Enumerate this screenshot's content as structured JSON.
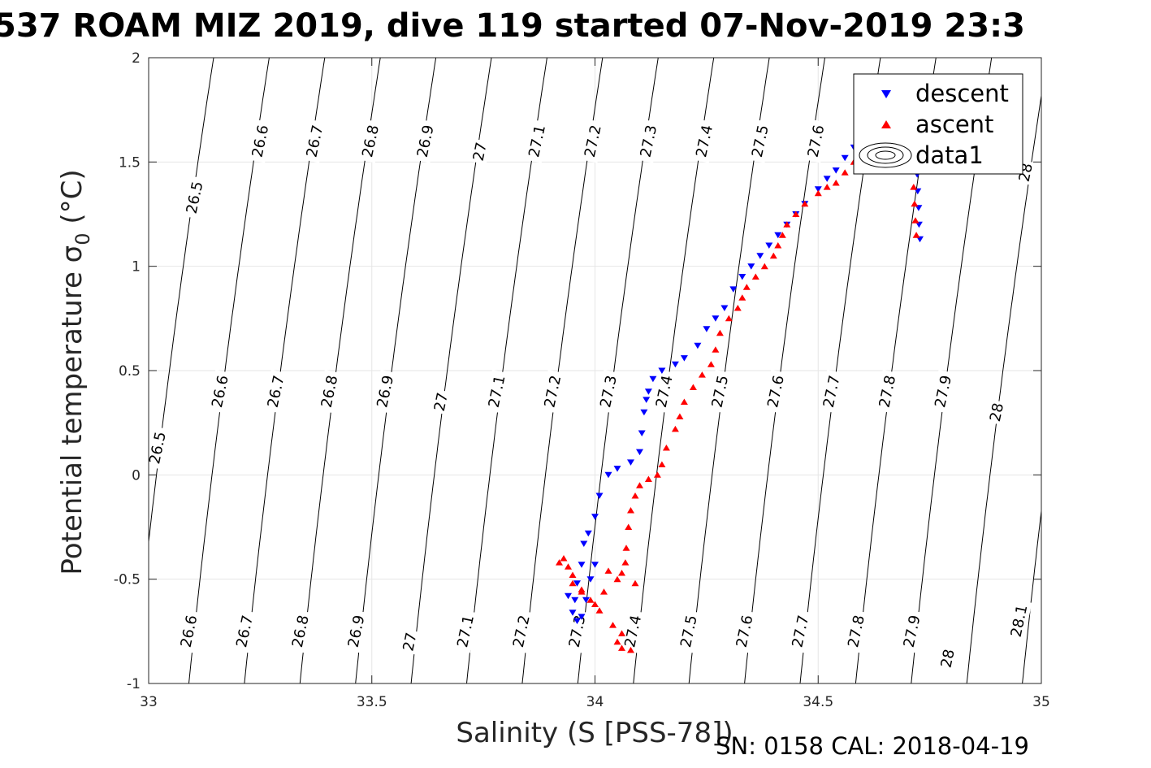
{
  "title": "537 ROAM MIZ 2019, dive 119 started 07-Nov-2019 23:3",
  "footer": "SN: 0158  CAL: 2018-04-19",
  "colors": {
    "descent": "#0000ff",
    "ascent": "#ff0000",
    "contour": "#000000",
    "grid": "#e6e6e6"
  },
  "chart_data": {
    "type": "scatter",
    "xlabel": "Salinity (S [PSS-78])",
    "ylabel": "Potential temperature σ",
    "ylabel_sub": "0",
    "ylabel_unit": " (°C)",
    "xlim": [
      33,
      35
    ],
    "ylim": [
      -1,
      2
    ],
    "grid": true,
    "legend_position": "top-right",
    "xticks": [
      33,
      33.5,
      34,
      34.5,
      35
    ],
    "xtick_labels": [
      "33",
      "33.5",
      "34",
      "34.5",
      "35"
    ],
    "yticks": [
      -1,
      -0.5,
      0,
      0.5,
      1,
      1.5,
      2
    ],
    "ytick_labels": [
      "-1",
      "-0.5",
      "0",
      "0.5",
      "1",
      "1.5",
      "2"
    ],
    "legend": [
      "descent",
      "ascent",
      "data1"
    ],
    "contour_levels": [
      "26.5",
      "26.6",
      "26.7",
      "26.8",
      "26.9",
      "27",
      "27.1",
      "27.2",
      "27.3",
      "27.4",
      "27.5",
      "27.6",
      "27.7",
      "27.8",
      "27.9",
      "28",
      "28.1"
    ],
    "contour_labels": [
      {
        "text": "26.5",
        "s": 33.103,
        "t": 1.33
      },
      {
        "text": "26.6",
        "s": 33.25,
        "t": 1.6
      },
      {
        "text": "26.7",
        "s": 33.372,
        "t": 1.6
      },
      {
        "text": "26.8",
        "s": 33.497,
        "t": 1.6
      },
      {
        "text": "26.9",
        "s": 33.62,
        "t": 1.6
      },
      {
        "text": "27",
        "s": 33.742,
        "t": 1.55
      },
      {
        "text": "27.1",
        "s": 33.87,
        "t": 1.6
      },
      {
        "text": "27.2",
        "s": 33.995,
        "t": 1.6
      },
      {
        "text": "27.3",
        "s": 34.12,
        "t": 1.6
      },
      {
        "text": "27.4",
        "s": 34.245,
        "t": 1.6
      },
      {
        "text": "27.5",
        "s": 34.37,
        "t": 1.6
      },
      {
        "text": "27.6",
        "s": 34.495,
        "t": 1.6
      },
      {
        "text": "28",
        "s": 34.965,
        "t": 1.45
      },
      {
        "text": "26.5",
        "s": 33.02,
        "t": 0.13
      },
      {
        "text": "26.6",
        "s": 33.16,
        "t": 0.4
      },
      {
        "text": "26.7",
        "s": 33.285,
        "t": 0.4
      },
      {
        "text": "26.8",
        "s": 33.405,
        "t": 0.4
      },
      {
        "text": "26.9",
        "s": 33.53,
        "t": 0.4
      },
      {
        "text": "27",
        "s": 33.655,
        "t": 0.35
      },
      {
        "text": "27.1",
        "s": 33.78,
        "t": 0.4
      },
      {
        "text": "27.2",
        "s": 33.905,
        "t": 0.4
      },
      {
        "text": "27.3",
        "s": 34.03,
        "t": 0.4
      },
      {
        "text": "27.4",
        "s": 34.155,
        "t": 0.4
      },
      {
        "text": "27.5",
        "s": 34.28,
        "t": 0.4
      },
      {
        "text": "27.6",
        "s": 34.405,
        "t": 0.4
      },
      {
        "text": "27.7",
        "s": 34.53,
        "t": 0.4
      },
      {
        "text": "27.8",
        "s": 34.655,
        "t": 0.4
      },
      {
        "text": "27.9",
        "s": 34.78,
        "t": 0.4
      },
      {
        "text": "28",
        "s": 34.9,
        "t": 0.3
      },
      {
        "text": "26.6",
        "s": 33.09,
        "t": -0.75
      },
      {
        "text": "26.7",
        "s": 33.215,
        "t": -0.75
      },
      {
        "text": "26.8",
        "s": 33.34,
        "t": -0.75
      },
      {
        "text": "26.9",
        "s": 33.465,
        "t": -0.75
      },
      {
        "text": "27",
        "s": 33.585,
        "t": -0.8
      },
      {
        "text": "27.1",
        "s": 33.71,
        "t": -0.75
      },
      {
        "text": "27.2",
        "s": 33.835,
        "t": -0.75
      },
      {
        "text": "27.3",
        "s": 33.96,
        "t": -0.75
      },
      {
        "text": "27.4",
        "s": 34.085,
        "t": -0.75
      },
      {
        "text": "27.5",
        "s": 34.21,
        "t": -0.75
      },
      {
        "text": "27.6",
        "s": 34.335,
        "t": -0.75
      },
      {
        "text": "27.7",
        "s": 34.46,
        "t": -0.75
      },
      {
        "text": "27.8",
        "s": 34.585,
        "t": -0.75
      },
      {
        "text": "27.9",
        "s": 34.71,
        "t": -0.75
      },
      {
        "text": "28",
        "s": 34.79,
        "t": -0.88
      },
      {
        "text": "28.1",
        "s": 34.95,
        "t": -0.7
      }
    ],
    "series": [
      {
        "name": "descent",
        "marker": "triangle-down",
        "points": [
          [
            34.728,
            1.13
          ],
          [
            34.726,
            1.2
          ],
          [
            34.725,
            1.28
          ],
          [
            34.723,
            1.36
          ],
          [
            34.722,
            1.44
          ],
          [
            34.72,
            1.52
          ],
          [
            34.718,
            1.58
          ],
          [
            34.716,
            1.62
          ],
          [
            34.64,
            1.64
          ],
          [
            34.6,
            1.6
          ],
          [
            34.58,
            1.57
          ],
          [
            34.56,
            1.52
          ],
          [
            34.54,
            1.46
          ],
          [
            34.52,
            1.42
          ],
          [
            34.5,
            1.37
          ],
          [
            34.47,
            1.3
          ],
          [
            34.45,
            1.25
          ],
          [
            34.43,
            1.2
          ],
          [
            34.41,
            1.15
          ],
          [
            34.39,
            1.1
          ],
          [
            34.37,
            1.05
          ],
          [
            34.35,
            1.0
          ],
          [
            34.33,
            0.95
          ],
          [
            34.31,
            0.89
          ],
          [
            34.29,
            0.8
          ],
          [
            34.27,
            0.75
          ],
          [
            34.25,
            0.7
          ],
          [
            34.23,
            0.62
          ],
          [
            34.2,
            0.56
          ],
          [
            34.18,
            0.53
          ],
          [
            34.15,
            0.5
          ],
          [
            34.13,
            0.46
          ],
          [
            34.12,
            0.4
          ],
          [
            34.115,
            0.36
          ],
          [
            34.11,
            0.3
          ],
          [
            34.105,
            0.2
          ],
          [
            34.1,
            0.11
          ],
          [
            34.08,
            0.06
          ],
          [
            34.05,
            0.03
          ],
          [
            34.03,
            0.0
          ],
          [
            34.01,
            -0.1
          ],
          [
            34.0,
            -0.2
          ],
          [
            33.985,
            -0.28
          ],
          [
            33.975,
            -0.33
          ],
          [
            33.97,
            -0.43
          ],
          [
            33.96,
            -0.52
          ],
          [
            33.955,
            -0.6
          ],
          [
            33.95,
            -0.66
          ],
          [
            33.96,
            -0.7
          ],
          [
            33.97,
            -0.68
          ],
          [
            33.98,
            -0.6
          ],
          [
            33.99,
            -0.5
          ],
          [
            34.0,
            -0.43
          ],
          [
            33.94,
            -0.58
          ]
        ]
      },
      {
        "name": "ascent",
        "marker": "triangle-up",
        "points": [
          [
            34.72,
            1.15
          ],
          [
            34.718,
            1.22
          ],
          [
            34.716,
            1.3
          ],
          [
            34.714,
            1.38
          ],
          [
            34.713,
            1.46
          ],
          [
            34.712,
            1.55
          ],
          [
            34.71,
            1.6
          ],
          [
            34.63,
            1.6
          ],
          [
            34.6,
            1.55
          ],
          [
            34.58,
            1.5
          ],
          [
            34.56,
            1.45
          ],
          [
            34.54,
            1.4
          ],
          [
            34.52,
            1.38
          ],
          [
            34.5,
            1.35
          ],
          [
            34.47,
            1.3
          ],
          [
            34.45,
            1.25
          ],
          [
            34.43,
            1.2
          ],
          [
            34.42,
            1.15
          ],
          [
            34.41,
            1.1
          ],
          [
            34.4,
            1.05
          ],
          [
            34.38,
            1.0
          ],
          [
            34.36,
            0.95
          ],
          [
            34.34,
            0.9
          ],
          [
            34.33,
            0.85
          ],
          [
            34.32,
            0.8
          ],
          [
            34.3,
            0.75
          ],
          [
            34.28,
            0.68
          ],
          [
            34.27,
            0.6
          ],
          [
            34.26,
            0.53
          ],
          [
            34.24,
            0.48
          ],
          [
            34.22,
            0.42
          ],
          [
            34.2,
            0.35
          ],
          [
            34.19,
            0.28
          ],
          [
            34.18,
            0.22
          ],
          [
            34.16,
            0.13
          ],
          [
            34.15,
            0.05
          ],
          [
            34.14,
            0.0
          ],
          [
            34.12,
            -0.02
          ],
          [
            34.1,
            -0.05
          ],
          [
            34.09,
            -0.1
          ],
          [
            34.08,
            -0.17
          ],
          [
            34.075,
            -0.25
          ],
          [
            34.07,
            -0.35
          ],
          [
            34.068,
            -0.42
          ],
          [
            34.06,
            -0.47
          ],
          [
            34.05,
            -0.5
          ],
          [
            34.09,
            -0.52
          ],
          [
            34.03,
            -0.46
          ],
          [
            34.02,
            -0.56
          ],
          [
            34.01,
            -0.65
          ],
          [
            34.0,
            -0.62
          ],
          [
            33.99,
            -0.6
          ],
          [
            33.97,
            -0.55
          ],
          [
            33.95,
            -0.52
          ],
          [
            33.94,
            -0.44
          ],
          [
            33.93,
            -0.4
          ],
          [
            33.92,
            -0.42
          ],
          [
            33.95,
            -0.48
          ],
          [
            33.97,
            -0.56
          ],
          [
            34.04,
            -0.72
          ],
          [
            34.05,
            -0.8
          ],
          [
            34.06,
            -0.83
          ],
          [
            34.08,
            -0.84
          ],
          [
            34.06,
            -0.76
          ]
        ]
      }
    ]
  }
}
